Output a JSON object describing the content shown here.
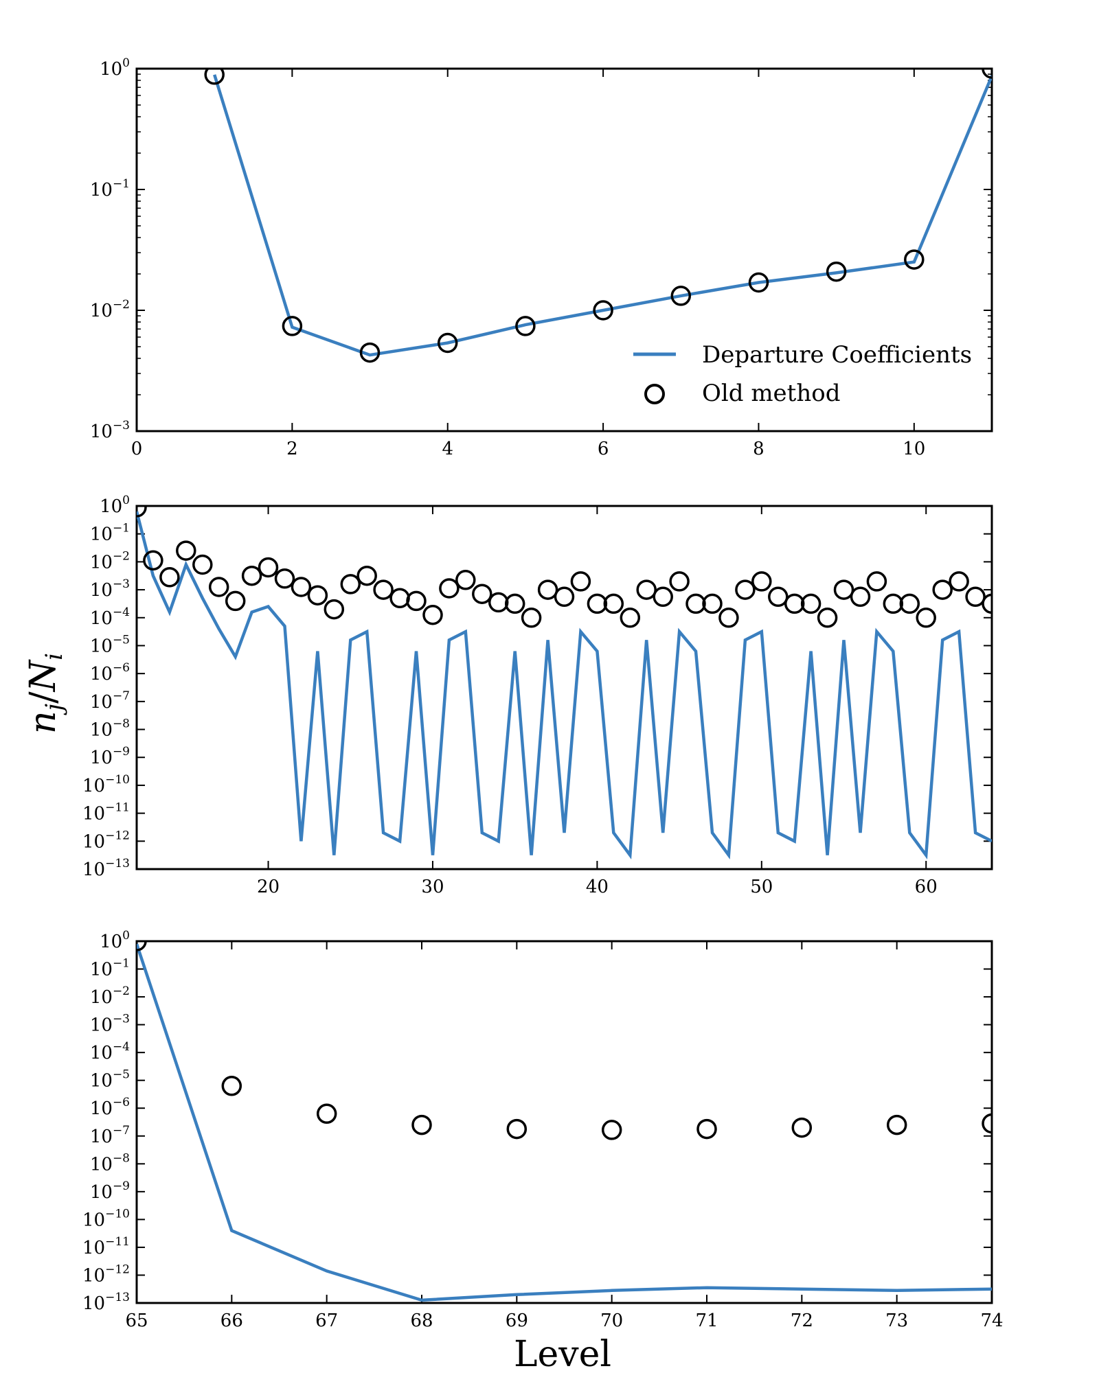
{
  "figure": {
    "ylabel_base": "n",
    "ylabel_base_sub": "j",
    "ylabel_slash": "/",
    "ylabel_den": "N",
    "ylabel_den_sub": "i",
    "xlabel": "Level"
  },
  "legend": {
    "line_label": "Departure Coefficients",
    "marker_label": "Old method"
  },
  "colors": {
    "line": "#3a7fbf",
    "marker_edge": "#000000"
  },
  "chart_data": [
    {
      "type": "line",
      "panel": "top",
      "xlim": [
        0,
        11
      ],
      "ylim_log10": [
        -3,
        0
      ],
      "y_scale": "log",
      "xticks": [
        0,
        2,
        4,
        6,
        8,
        10
      ],
      "yticks_log10": [
        -3,
        -2,
        -1,
        0
      ],
      "legend_position": "lower-right",
      "series": [
        {
          "name": "Departure Coefficients",
          "x": [
            1,
            2,
            3,
            4,
            5,
            6,
            7,
            8,
            9,
            10,
            11
          ],
          "y_log10": [
            -0.05,
            -2.14,
            -2.37,
            -2.27,
            -2.12,
            -2.0,
            -1.88,
            -1.77,
            -1.69,
            -1.6,
            -0.06
          ]
        },
        {
          "name": "Old method",
          "x": [
            1,
            2,
            3,
            4,
            5,
            6,
            7,
            8,
            9,
            10,
            11
          ],
          "y_log10": [
            -0.05,
            -2.13,
            -2.35,
            -2.27,
            -2.13,
            -2.0,
            -1.88,
            -1.77,
            -1.68,
            -1.58,
            0.0
          ]
        }
      ]
    },
    {
      "type": "line",
      "panel": "middle",
      "xlim": [
        12,
        64
      ],
      "ylim_log10": [
        -13,
        0
      ],
      "y_scale": "log",
      "xticks": [
        20,
        30,
        40,
        50,
        60
      ],
      "yticks_log10": [
        -13,
        -12,
        -11,
        -10,
        -9,
        -8,
        -7,
        -6,
        -5,
        -4,
        -3,
        -2,
        -1,
        0
      ],
      "series": [
        {
          "name": "Departure Coefficients",
          "x": [
            12,
            13,
            14,
            15,
            16,
            17,
            18,
            19,
            20,
            21,
            22,
            23,
            24,
            25,
            26,
            27,
            28,
            29,
            30,
            31,
            32,
            33,
            34,
            35,
            36,
            37,
            38,
            39,
            40,
            41,
            42,
            43,
            44,
            45,
            46,
            47,
            48,
            49,
            50,
            51,
            52,
            53,
            54,
            55,
            56,
            57,
            58,
            59,
            60,
            61,
            62,
            63,
            64
          ],
          "y_log10": [
            -0.2,
            -2.5,
            -3.8,
            -2.1,
            -3.3,
            -4.4,
            -5.4,
            -3.8,
            -3.6,
            -4.3,
            -12.0,
            -5.2,
            -12.5,
            -4.8,
            -4.5,
            -11.7,
            -12.0,
            -5.2,
            -12.5,
            -4.8,
            -4.5,
            -11.7,
            -12.0,
            -5.2,
            -12.5,
            -4.8,
            -11.7,
            -4.5,
            -5.2,
            -11.7,
            -12.5,
            -4.8,
            -11.7,
            -4.5,
            -5.2,
            -11.7,
            -12.5,
            -4.8,
            -4.5,
            -11.7,
            -12.0,
            -5.2,
            -12.5,
            -4.8,
            -11.7,
            -4.5,
            -5.2,
            -11.7,
            -12.5,
            -4.8,
            -4.5,
            -11.7,
            -12.0
          ]
        },
        {
          "name": "Old method",
          "x": [
            12,
            13,
            14,
            15,
            16,
            17,
            18,
            19,
            20,
            21,
            22,
            23,
            24,
            25,
            26,
            27,
            28,
            29,
            30,
            31,
            32,
            33,
            34,
            35,
            36,
            37,
            38,
            39,
            40,
            41,
            42,
            43,
            44,
            45,
            46,
            47,
            48,
            49,
            50,
            51,
            52,
            53,
            54,
            55,
            56,
            57,
            58,
            59,
            60,
            61,
            62,
            63,
            64
          ],
          "y_log10": [
            -0.05,
            -1.95,
            -2.55,
            -1.6,
            -2.1,
            -2.9,
            -3.4,
            -2.5,
            -2.2,
            -2.6,
            -2.9,
            -3.2,
            -3.7,
            -2.8,
            -2.5,
            -3.0,
            -3.3,
            -3.4,
            -3.9,
            -2.95,
            -2.65,
            -3.15,
            -3.45,
            -3.5,
            -4.0,
            -3.0,
            -3.25,
            -2.7,
            -3.5,
            -3.5,
            -4.0,
            -3.0,
            -3.25,
            -2.7,
            -3.5,
            -3.5,
            -4.0,
            -3.0,
            -2.7,
            -3.25,
            -3.5,
            -3.5,
            -4.0,
            -3.0,
            -3.25,
            -2.7,
            -3.5,
            -3.5,
            -4.0,
            -3.0,
            -2.7,
            -3.25,
            -3.5
          ]
        }
      ]
    },
    {
      "type": "line",
      "panel": "bottom",
      "xlim": [
        65,
        74
      ],
      "ylim_log10": [
        -13,
        0
      ],
      "y_scale": "log",
      "xticks": [
        65,
        66,
        67,
        68,
        69,
        70,
        71,
        72,
        73,
        74
      ],
      "yticks_log10": [
        -13,
        -12,
        -11,
        -10,
        -9,
        -8,
        -7,
        -6,
        -5,
        -4,
        -3,
        -2,
        -1,
        0
      ],
      "series": [
        {
          "name": "Departure Coefficients",
          "x": [
            65,
            66,
            67,
            68,
            69,
            70,
            71,
            72,
            73,
            74
          ],
          "y_log10": [
            -0.1,
            -10.4,
            -11.85,
            -12.9,
            -12.7,
            -12.55,
            -12.45,
            -12.5,
            -12.55,
            -12.5
          ]
        },
        {
          "name": "Old method",
          "x": [
            65,
            66,
            67,
            68,
            69,
            70,
            71,
            72,
            73,
            74
          ],
          "y_log10": [
            0.0,
            -5.2,
            -6.2,
            -6.6,
            -6.75,
            -6.78,
            -6.75,
            -6.7,
            -6.6,
            -6.55
          ]
        }
      ]
    }
  ]
}
